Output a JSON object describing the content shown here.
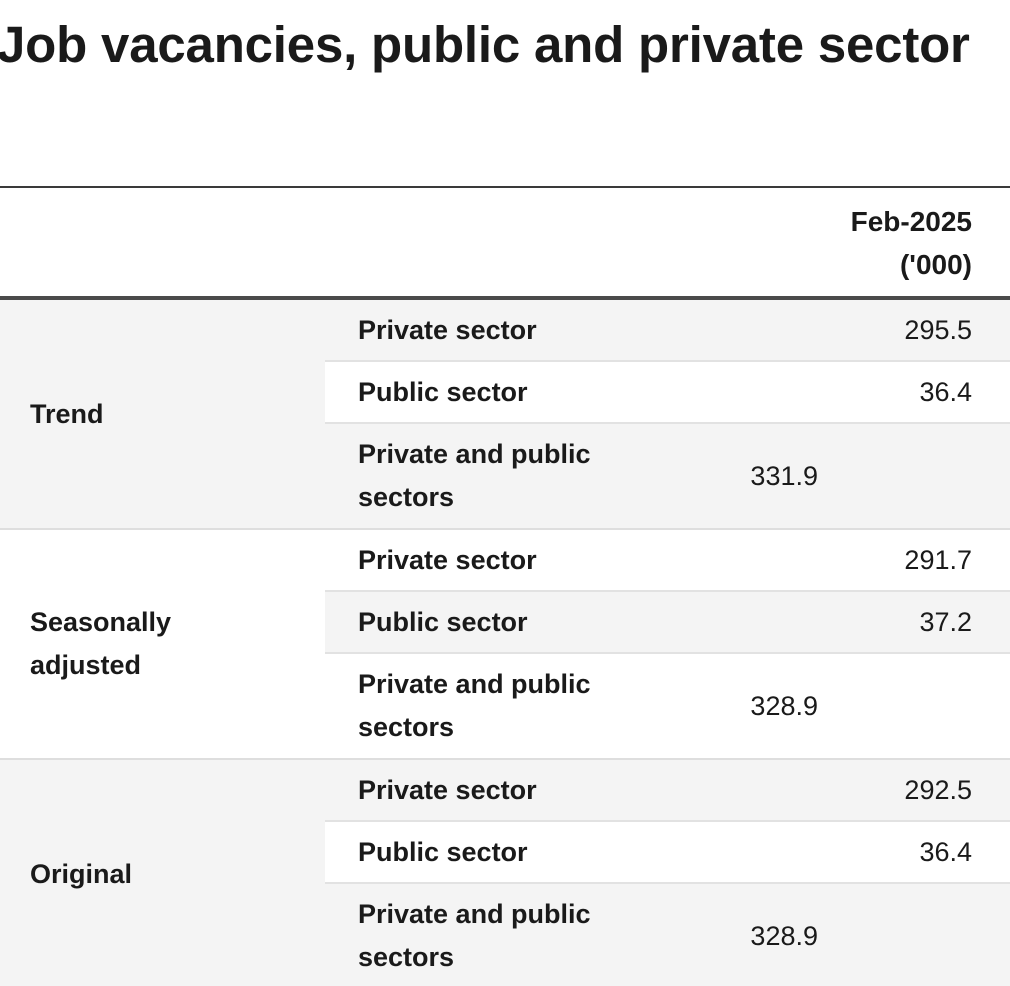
{
  "title": "Job vacancies, public and private sector",
  "table": {
    "column_header": {
      "period": "Feb-2025",
      "unit": "('000)"
    },
    "groups": [
      {
        "label": "Trend",
        "rows": [
          {
            "sector": "Private sector",
            "value": "295.5"
          },
          {
            "sector": "Public sector",
            "value": "36.4"
          },
          {
            "sector": "Private and public sectors",
            "value": "331.9"
          }
        ]
      },
      {
        "label": "Seasonally adjusted",
        "rows": [
          {
            "sector": "Private sector",
            "value": "291.7"
          },
          {
            "sector": "Public sector",
            "value": "37.2"
          },
          {
            "sector": "Private and public sectors",
            "value": "328.9"
          }
        ]
      },
      {
        "label": "Original",
        "rows": [
          {
            "sector": "Private sector",
            "value": "292.5"
          },
          {
            "sector": "Public sector",
            "value": "36.4"
          },
          {
            "sector": "Private and public sectors",
            "value": "328.9"
          }
        ]
      }
    ]
  }
}
